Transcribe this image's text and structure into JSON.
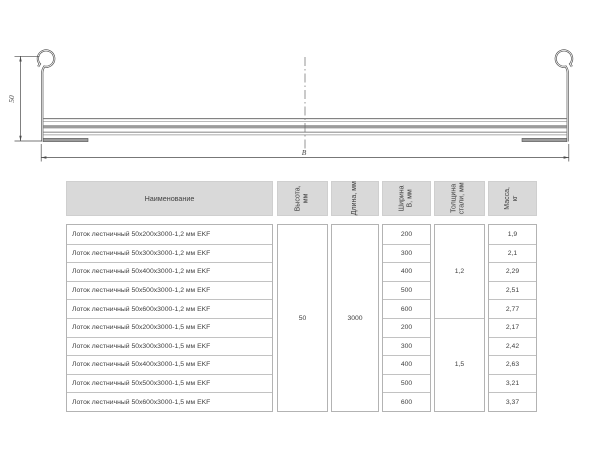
{
  "drawing": {
    "height_dim_label": "50",
    "width_dim_label": "B"
  },
  "table": {
    "header": {
      "name": "Наименование",
      "height": "Высота,\nмм",
      "length": "Длина, мм",
      "width": "Ширина\nВ, мм",
      "thickness": "Толщина\nстали, мм",
      "mass": "Масса,\nкг"
    },
    "merged": {
      "height": "50",
      "length": "3000",
      "thickness_top": "1,2",
      "thickness_bottom": "1,5"
    },
    "rows": [
      {
        "name": "Лоток лестничный 50x200x3000-1,2 мм EKF",
        "width": "200",
        "mass": "1,9"
      },
      {
        "name": "Лоток лестничный 50x300x3000-1,2 мм EKF",
        "width": "300",
        "mass": "2,1"
      },
      {
        "name": "Лоток лестничный 50x400x3000-1,2 мм EKF",
        "width": "400",
        "mass": "2,29"
      },
      {
        "name": "Лоток лестничный 50x500x3000-1,2 мм EKF",
        "width": "500",
        "mass": "2,51"
      },
      {
        "name": "Лоток лестничный 50x600x3000-1,2 мм EKF",
        "width": "600",
        "mass": "2,77"
      },
      {
        "name": "Лоток лестничный 50x200x3000-1,5 мм EKF",
        "width": "200",
        "mass": "2,17"
      },
      {
        "name": "Лоток лестничный 50x300x3000-1,5 мм EKF",
        "width": "300",
        "mass": "2,42"
      },
      {
        "name": "Лоток лестничный 50x400x3000-1,5 мм EKF",
        "width": "400",
        "mass": "2,63"
      },
      {
        "name": "Лоток лестничный 50x500x3000-1,5 мм EKF",
        "width": "500",
        "mass": "3,21"
      },
      {
        "name": "Лоток лестничный 50x600x3000-1,5 мм EKF",
        "width": "600",
        "mass": "3,37"
      }
    ]
  },
  "colors": {
    "header_bg": "#d9d9d9",
    "table_border": "#b3b3b3",
    "row_border": "#c2c2c2",
    "text": "#3f3f3f",
    "drawing_line": "#4f4f4f",
    "drawing_gray": "#9c9c9c"
  }
}
